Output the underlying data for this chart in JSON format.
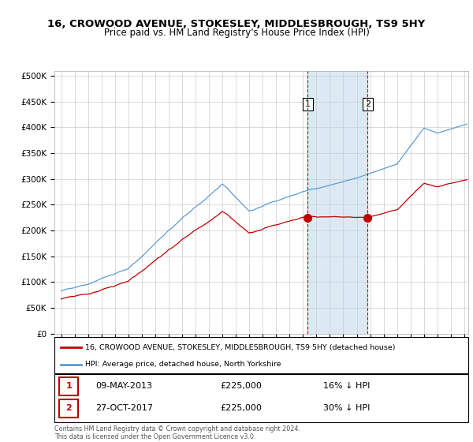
{
  "title": "16, CROWOOD AVENUE, STOKESLEY, MIDDLESBROUGH, TS9 5HY",
  "subtitle": "Price paid vs. HM Land Registry's House Price Index (HPI)",
  "ylabel_ticks": [
    "£0",
    "£50K",
    "£100K",
    "£150K",
    "£200K",
    "£250K",
    "£300K",
    "£350K",
    "£400K",
    "£450K",
    "£500K"
  ],
  "ytick_values": [
    0,
    50000,
    100000,
    150000,
    200000,
    250000,
    300000,
    350000,
    400000,
    450000,
    500000
  ],
  "ylim": [
    0,
    510000
  ],
  "xlim_start": 1994.5,
  "xlim_end": 2025.3,
  "hpi_color": "#5b9bd5",
  "price_color": "#c00000",
  "highlight_fill": "#dce9f5",
  "sale1_date": "09-MAY-2013",
  "sale1_price": 225000,
  "sale1_pct": "16%",
  "sale1_year": 2013.35,
  "sale2_date": "27-OCT-2017",
  "sale2_price": 225000,
  "sale2_pct": "30%",
  "sale2_year": 2017.82,
  "legend_red_label": "16, CROWOOD AVENUE, STOKESLEY, MIDDLESBROUGH, TS9 5HY (detached house)",
  "legend_blue_label": "HPI: Average price, detached house, North Yorkshire",
  "footer": "Contains HM Land Registry data © Crown copyright and database right 2024.\nThis data is licensed under the Open Government Licence v3.0.",
  "background_color": "#ffffff",
  "grid_color": "#cccccc"
}
